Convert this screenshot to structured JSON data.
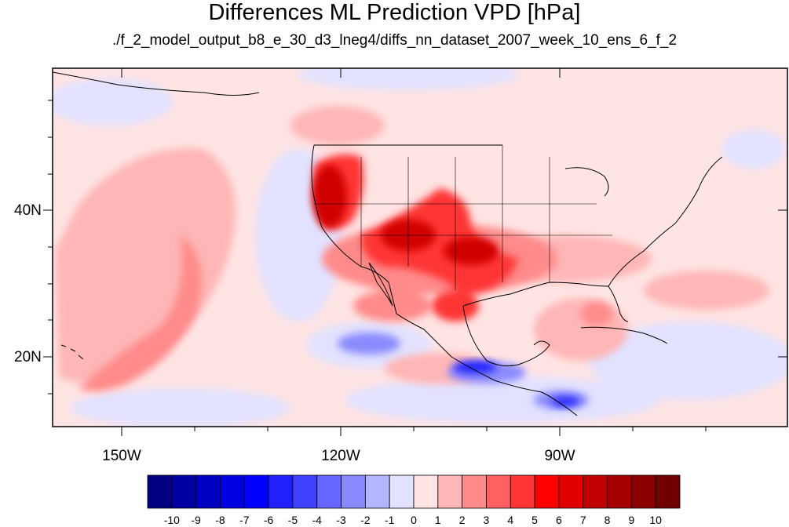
{
  "title": "Differences ML Prediction VPD [hPa]",
  "subtitle": "./f_2_model_output_b8_e_30_d3_lneg4/diffs_nn_dataset_2007_week_10_ens_6_f_2",
  "map": {
    "lat_labels": [
      "40N",
      "20N"
    ],
    "lon_labels": [
      "150W",
      "120W",
      "90W"
    ],
    "extent": {
      "lon_min": -160,
      "lon_max": -56,
      "lat_min": 10,
      "lat_max": 59
    }
  },
  "colorbar": {
    "labels": [
      "-10",
      "-9",
      "-8",
      "-7",
      "-6",
      "-5",
      "-4",
      "-3",
      "-2",
      "-1",
      "0",
      "1",
      "2",
      "3",
      "4",
      "5",
      "6",
      "7",
      "8",
      "9",
      "10"
    ],
    "colors": [
      "#000080",
      "#0000a0",
      "#0000c0",
      "#0000e0",
      "#0000ff",
      "#2020ff",
      "#4040ff",
      "#6565ff",
      "#8a8aff",
      "#b4b4ff",
      "#e2e2ff",
      "#ffe4e4",
      "#ffb6b6",
      "#ff8a8a",
      "#ff6060",
      "#ff3636",
      "#ff0000",
      "#e00000",
      "#c00000",
      "#a40000",
      "#8a0000",
      "#700000"
    ]
  }
}
